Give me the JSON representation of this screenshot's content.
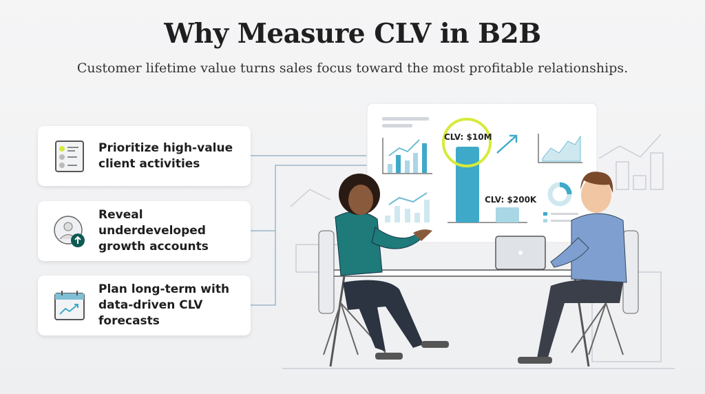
{
  "header": {
    "title": "Why Measure CLV in B2B",
    "subtitle": "Customer lifetime value turns sales focus toward the most profitable relationships."
  },
  "cards": [
    {
      "icon": "checklist-icon",
      "text": "Prioritize high-value client activities"
    },
    {
      "icon": "user-growth-icon",
      "text": "Reveal underdeveloped growth accounts"
    },
    {
      "icon": "calendar-trend-icon",
      "text": "Plan long-term with data-driven CLV forecasts"
    }
  ],
  "board": {
    "high_label": "CLV: $10M",
    "low_label": "CLV: $200K"
  },
  "colors": {
    "accent": "#3fa9c9",
    "highlight": "#d7ea3a",
    "dark_teal": "#0f5a52",
    "woman_shirt": "#1f7a7a",
    "man_shirt": "#7f9fd0"
  }
}
